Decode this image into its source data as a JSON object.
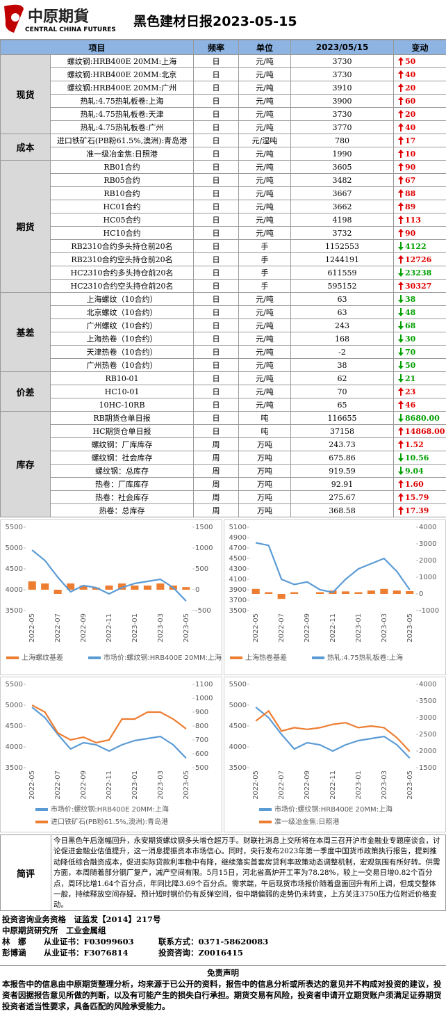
{
  "header": {
    "logo_cn": "中原期貨",
    "logo_en": "CENTRAL CHINA FUTURES",
    "title": "黑色建材日报2023-05-15"
  },
  "table": {
    "columns": [
      "项目",
      "频率",
      "单位",
      "2023/05/15",
      "变动"
    ],
    "groups": [
      {
        "name": "现货",
        "rows": [
          [
            "螺纹钢:HRB400E 20MM:上海",
            "日",
            "元/吨",
            "3730",
            "50",
            "up"
          ],
          [
            "螺纹钢:HRB400E 20MM:北京",
            "日",
            "元/吨",
            "3730",
            "40",
            "up"
          ],
          [
            "螺纹钢:HRB400E 20MM:广州",
            "日",
            "元/吨",
            "3910",
            "20",
            "up"
          ],
          [
            "热轧:4.75热轧板卷:上海",
            "日",
            "元/吨",
            "3900",
            "60",
            "up"
          ],
          [
            "热轧:4.75热轧板卷:天津",
            "日",
            "元/吨",
            "3730",
            "20",
            "up"
          ],
          [
            "热轧:4.75热轧板卷:广州",
            "日",
            "元/吨",
            "3770",
            "40",
            "up"
          ]
        ]
      },
      {
        "name": "成本",
        "rows": [
          [
            "进口铁矿石(PB粉61.5%,澳洲):青岛港",
            "日",
            "元/湿吨",
            "780",
            "17",
            "up"
          ],
          [
            "准一级冶金焦:日照港",
            "日",
            "元/吨",
            "1990",
            "10",
            "up"
          ]
        ]
      },
      {
        "name": "期货",
        "rows": [
          [
            "RB01合约",
            "日",
            "元/吨",
            "3605",
            "90",
            "up"
          ],
          [
            "RB05合约",
            "日",
            "元/吨",
            "3482",
            "67",
            "up"
          ],
          [
            "RB10合约",
            "日",
            "元/吨",
            "3667",
            "88",
            "up"
          ],
          [
            "HC01合约",
            "日",
            "元/吨",
            "3662",
            "89",
            "up"
          ],
          [
            "HC05合约",
            "日",
            "元/吨",
            "4198",
            "113",
            "up"
          ],
          [
            "HC10合约",
            "日",
            "元/吨",
            "3732",
            "90",
            "up"
          ],
          [
            "RB2310合约多头持仓前20名",
            "日",
            "手",
            "1152553",
            "4122",
            "down"
          ],
          [
            "RB2310合约空头持仓前20名",
            "日",
            "手",
            "1244191",
            "12726",
            "up"
          ],
          [
            "HC2310合约多头持仓前20名",
            "日",
            "手",
            "611559",
            "23238",
            "down"
          ],
          [
            "HC2310合约空头持仓前20名",
            "日",
            "手",
            "595152",
            "30327",
            "up"
          ]
        ]
      },
      {
        "name": "基差",
        "rows": [
          [
            "上海螺纹（10合约）",
            "日",
            "元/吨",
            "63",
            "38",
            "down"
          ],
          [
            "北京螺纹（10合约）",
            "日",
            "元/吨",
            "63",
            "48",
            "down"
          ],
          [
            "广州螺纹（10合约）",
            "日",
            "元/吨",
            "243",
            "68",
            "down"
          ],
          [
            "上海热卷（10合约）",
            "日",
            "元/吨",
            "168",
            "30",
            "down"
          ],
          [
            "天津热卷（10合约）",
            "日",
            "元/吨",
            "-2",
            "70",
            "down"
          ],
          [
            "广州热卷（10合约）",
            "日",
            "元/吨",
            "38",
            "50",
            "down"
          ]
        ]
      },
      {
        "name": "价差",
        "rows": [
          [
            "RB10-01",
            "日",
            "元/吨",
            "62",
            "21",
            "down"
          ],
          [
            "HC10-01",
            "日",
            "元/吨",
            "70",
            "23",
            "up"
          ],
          [
            "10HC-10RB",
            "日",
            "元/吨",
            "65",
            "46",
            "up"
          ]
        ]
      },
      {
        "name": "库存",
        "rows": [
          [
            "RB期货仓单日报",
            "日",
            "吨",
            "116655",
            "8680.00",
            "down"
          ],
          [
            "HC期货仓单日报",
            "日",
            "吨",
            "37158",
            "14868.00",
            "up"
          ],
          [
            "螺纹钢：厂库库存",
            "周",
            "万吨",
            "243.73",
            "1.52",
            "up"
          ],
          [
            "螺纹钢：社会库存",
            "周",
            "万吨",
            "675.86",
            "10.56",
            "down"
          ],
          [
            "螺纹钢：总库存",
            "周",
            "万吨",
            "919.59",
            "9.04",
            "down"
          ],
          [
            "热卷：厂库库存",
            "周",
            "万吨",
            "92.91",
            "1.60",
            "up"
          ],
          [
            "热卷：社会库存",
            "周",
            "万吨",
            "275.67",
            "15.79",
            "up"
          ],
          [
            "热卷：总库存",
            "周",
            "万吨",
            "368.58",
            "17.39",
            "up"
          ]
        ]
      }
    ]
  },
  "chart_data": [
    {
      "type": "line",
      "legend": "row",
      "categories": [
        "2022-05",
        null,
        "2022-07",
        null,
        "2022-09",
        null,
        "2022-11",
        null,
        "2023-01",
        null,
        "2023-03",
        null,
        "2023-05"
      ],
      "ylim": [
        3500,
        5500
      ],
      "yticks": [
        3500,
        4000,
        4500,
        5000,
        5500
      ],
      "y2lim": [
        -500,
        1500
      ],
      "y2ticks": [
        -500,
        0,
        500,
        1000,
        1500
      ],
      "series": [
        {
          "name": "上海螺纹基差",
          "type": "bar",
          "axis": "y2",
          "color": "#ed7d31",
          "values": [
            200,
            150,
            -100,
            150,
            100,
            50,
            100,
            150,
            100,
            100,
            150,
            100,
            63
          ]
        },
        {
          "name": "市场价:螺纹钢:HRB400E 20MM:上海",
          "type": "line",
          "axis": "y",
          "color": "#5b9bd5",
          "values": [
            4950,
            4700,
            4300,
            3950,
            4100,
            4050,
            3900,
            4050,
            4150,
            4200,
            4250,
            4050,
            3730
          ]
        }
      ]
    },
    {
      "type": "line",
      "legend": "row",
      "categories": [
        "2022-05",
        null,
        "2022-07",
        null,
        "2022-09",
        null,
        "2022-11",
        null,
        "2023-01",
        null,
        "2023-03",
        null,
        "2023-05"
      ],
      "ylim": [
        3500,
        5100
      ],
      "yticks": [
        3500,
        3700,
        3900,
        4100,
        4300,
        4500,
        4700,
        4900,
        5100
      ],
      "y2lim": [
        -1000,
        4000
      ],
      "y2ticks": [
        -1000,
        0,
        1000,
        2000,
        3000,
        4000
      ],
      "series": [
        {
          "name": "上海热卷基差",
          "type": "bar",
          "axis": "y2",
          "color": "#ed7d31",
          "values": [
            300,
            100,
            -300,
            100,
            0,
            100,
            200,
            150,
            100,
            200,
            300,
            200,
            168
          ]
        },
        {
          "name": "热轧:4.75热轧板卷:上海",
          "type": "line",
          "axis": "y",
          "color": "#5b9bd5",
          "values": [
            4800,
            4750,
            4100,
            4000,
            4050,
            3900,
            3850,
            4100,
            4300,
            4400,
            4500,
            4250,
            3900
          ]
        }
      ]
    },
    {
      "type": "line",
      "legend": "column",
      "categories": [
        "2022-05",
        null,
        "2022-07",
        null,
        "2022-09",
        null,
        "2022-11",
        null,
        "2023-01",
        null,
        "2023-03",
        null,
        "2023-05"
      ],
      "ylim": [
        3500,
        5500
      ],
      "yticks": [
        3500,
        4000,
        4500,
        5000,
        5500
      ],
      "y2lim": [
        500,
        1100
      ],
      "y2ticks": [
        500,
        600,
        700,
        800,
        900,
        1000,
        1100
      ],
      "series": [
        {
          "name": "市场价:螺纹钢:HRB400E 20MM:上海",
          "type": "line",
          "axis": "y",
          "color": "#5b9bd5",
          "values": [
            4950,
            4700,
            4300,
            3950,
            4100,
            4050,
            3900,
            4050,
            4150,
            4200,
            4250,
            4050,
            3730
          ]
        },
        {
          "name": "进口铁矿石(PB粉61.5%,澳洲):青岛港",
          "type": "line",
          "axis": "y2",
          "color": "#ed7d31",
          "values": [
            950,
            900,
            750,
            700,
            720,
            680,
            700,
            850,
            850,
            900,
            900,
            850,
            780
          ]
        }
      ]
    },
    {
      "type": "line",
      "legend": "column",
      "categories": [
        "2022-05",
        null,
        "2022-07",
        null,
        "2022-09",
        null,
        "2022-11",
        null,
        "2023-01",
        null,
        "2023-03",
        null,
        "2023-05"
      ],
      "ylim": [
        3500,
        5500
      ],
      "yticks": [
        3500,
        4000,
        4500,
        5000,
        5500
      ],
      "y2lim": [
        1500,
        4000
      ],
      "y2ticks": [
        1500,
        2000,
        2500,
        3000,
        3500,
        4000
      ],
      "series": [
        {
          "name": "市场价:螺纹钢:HRB400E 20MM:上海",
          "type": "line",
          "axis": "y",
          "color": "#5b9bd5",
          "values": [
            4950,
            4700,
            4300,
            3950,
            4100,
            4050,
            3900,
            4050,
            4150,
            4200,
            4250,
            4050,
            3730
          ]
        },
        {
          "name": "准一级冶金焦:日照港",
          "type": "line",
          "axis": "y2",
          "color": "#ed7d31",
          "values": [
            2900,
            3200,
            2600,
            2700,
            2650,
            2700,
            2800,
            2850,
            2700,
            2750,
            2700,
            2400,
            1990
          ]
        }
      ]
    }
  ],
  "comment": {
    "label": "简评",
    "text": "今日黑色午后涨幅回升，永安期货螺纹钢多头增仓超万手。财联社消息上交所将在本周三召开沪市金融业专题座谈会，讨论促进金融业估值提升，这一消息提振资本市场信心。同时，央行发布2023年第一季度中国货币政策执行报告，提到推动降低综合融资成本，促进实际贷款利率稳中有降，继续落实首套房贷利率政策动态调整机制，宏观氛围有所好转。供需方面，本周随着部分钢厂复产，减产空间有限。5月15日，河北省高炉开工率为78.28%，较上一交易日增0.82个百分点，周环比增1.64个百分点，年同比降3.69个百分点。需求端，午后现货市场报价随着盘面回升有所上调，但成交整体一般，持续释放空间存疑。预计短时钢价仍有反弹空间，但中期偏弱的走势仍未转变，上方关注3750压力位附近价格变动。"
  },
  "footer": {
    "qualification": "投资咨询业务资格　证监发【2014】217号",
    "team": "中原期货研究所　工业金属组",
    "staff": [
      [
        "林　娜",
        "从业证书：F03099603",
        "联系方式：0371-58620083"
      ],
      [
        "彭博涵",
        "从业证书：F3076814",
        "投资咨询：Z0016415"
      ]
    ],
    "disclaimer_title": "免责声明",
    "disclaimer": "本报告中的信息由中原期货整理分析，均来源于已公开的资料，报告中的信息分析或所表达的意见并不构成对投资的建议，投资者因据报告意见所做的判断，以及有可能产生的损失自行承担。期货交易有风险，投资者申请开立期货账户须满足证券期货投资者适当性要求，具备匹配的风险承受能力。"
  }
}
